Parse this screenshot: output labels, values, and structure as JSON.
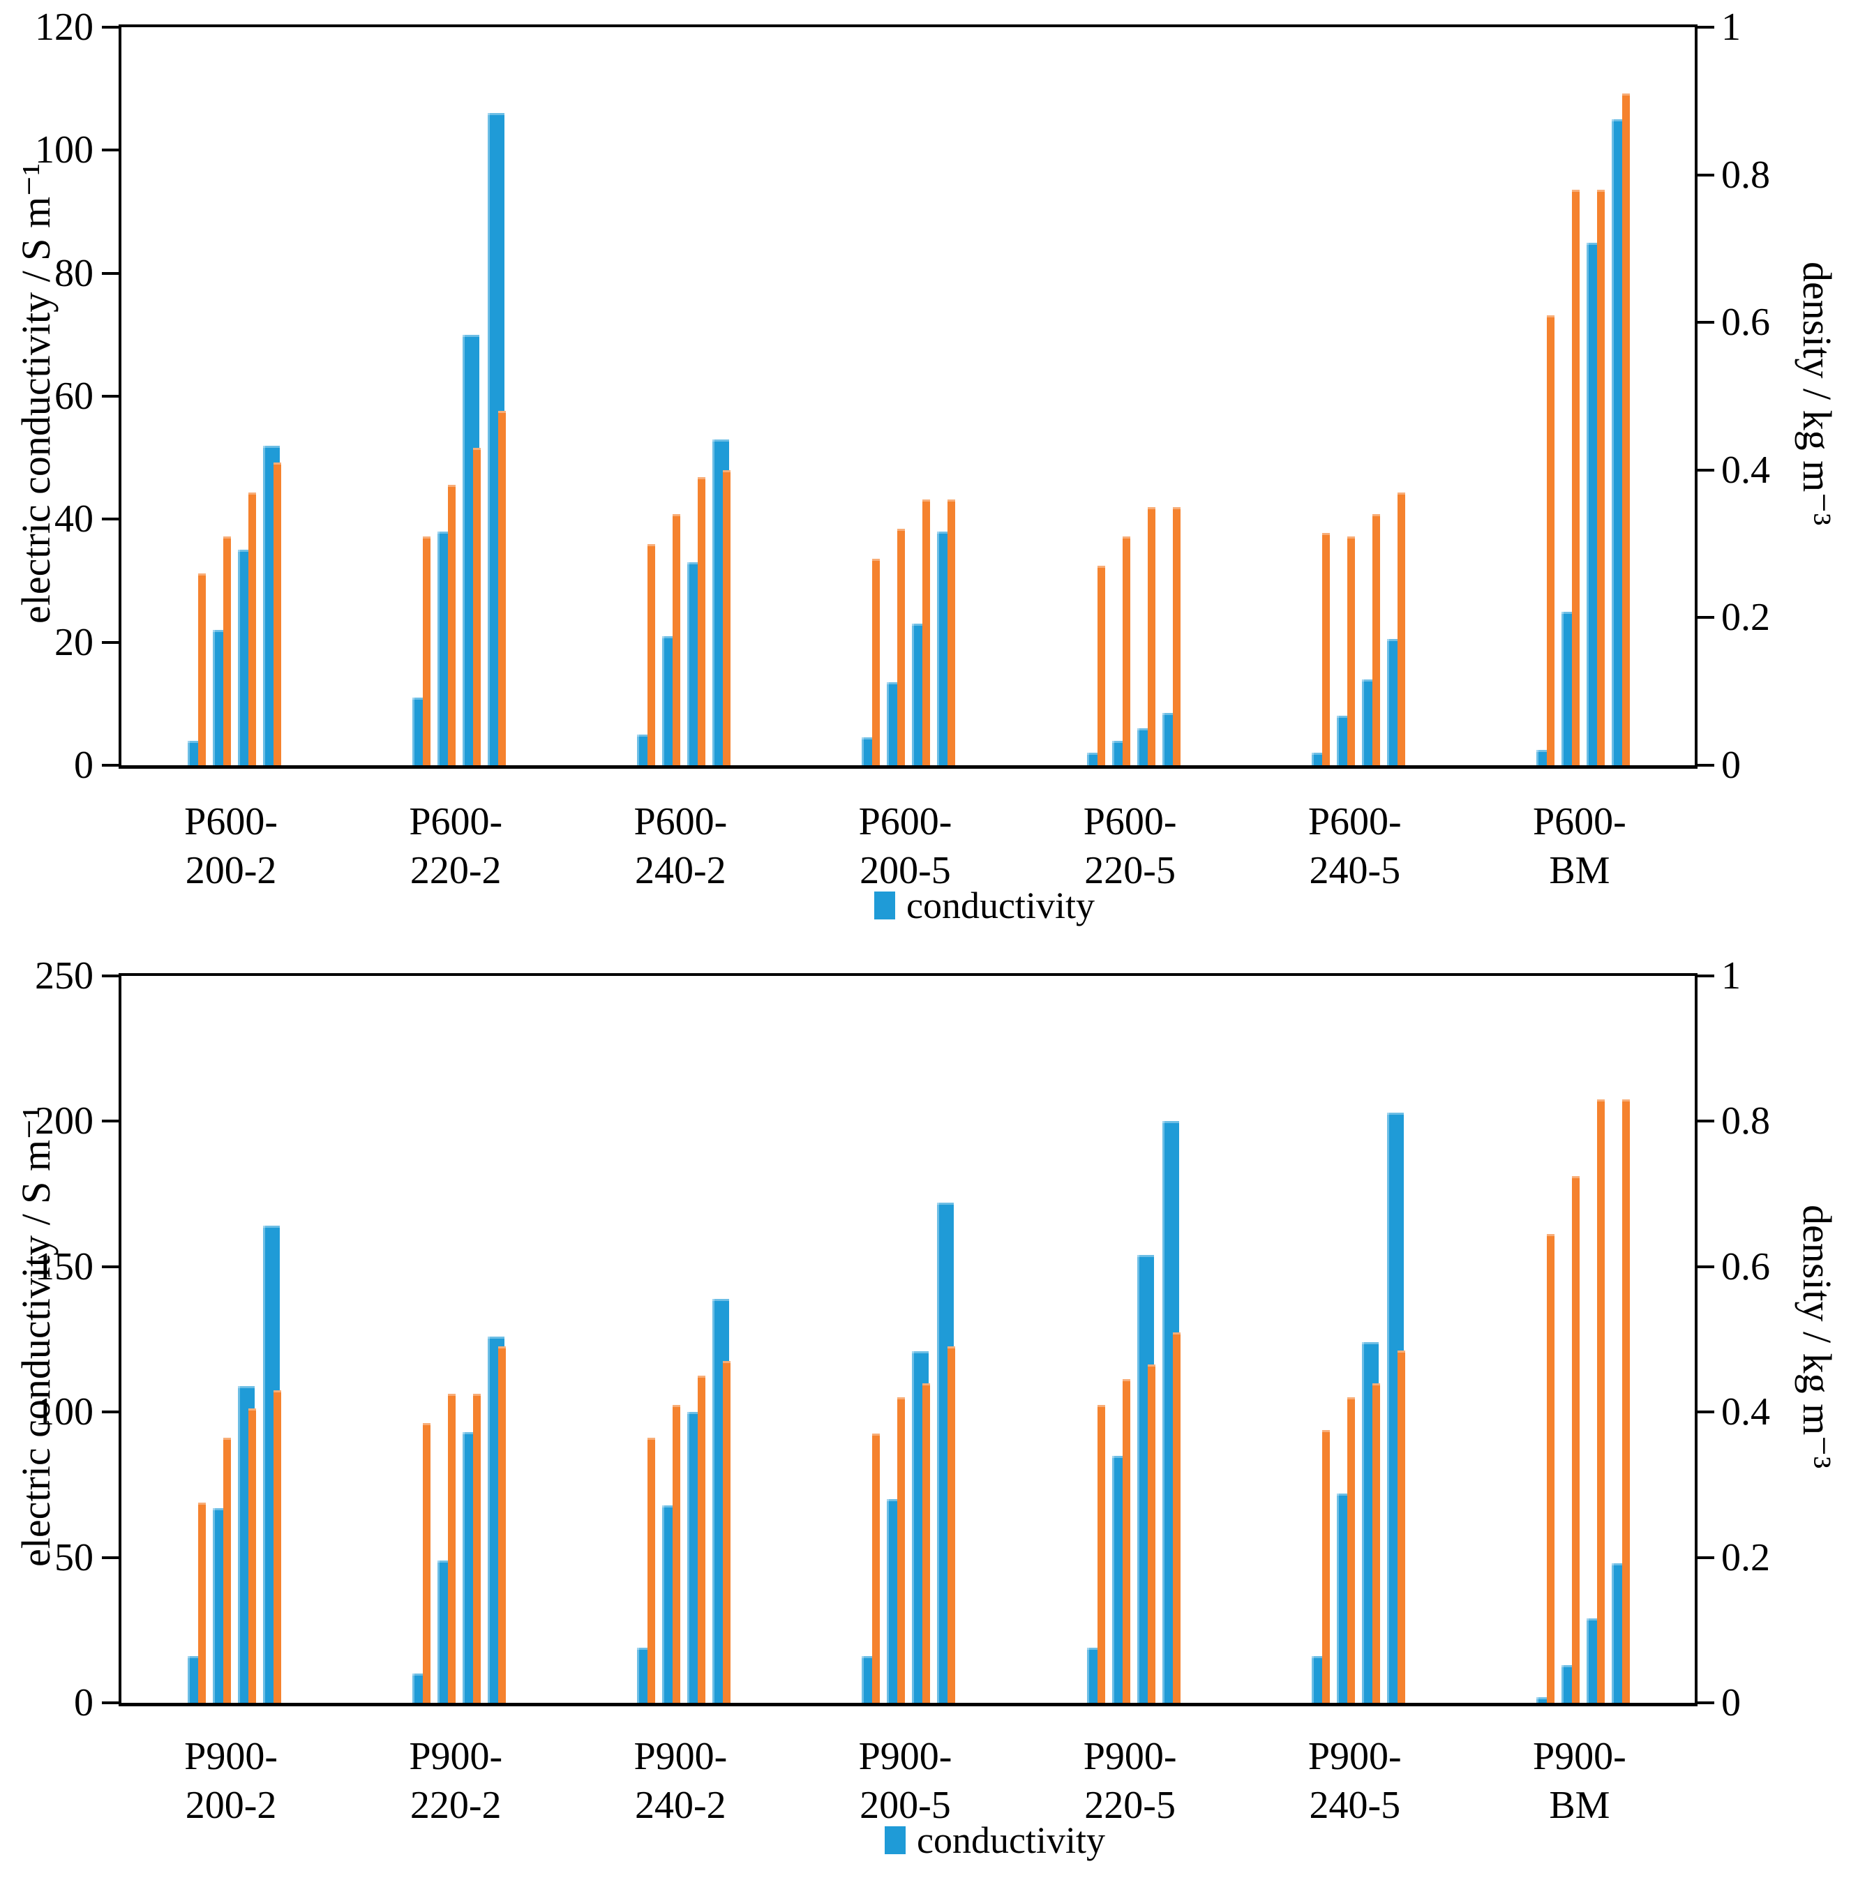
{
  "colors": {
    "conductivity_blue": "#1F9BD7",
    "density_orange": "#F5822E",
    "axis_black": "#000000"
  },
  "chart_data": [
    {
      "type": "bar",
      "title": "",
      "left_axis": {
        "label": "electric conductivity / S m⁻¹",
        "ticks": [
          120,
          100,
          80,
          60,
          40,
          20,
          0
        ],
        "max": 120
      },
      "right_axis": {
        "label": "density / kg m⁻³",
        "ticks": [
          "1",
          "0.8",
          "0.6",
          "0.4",
          "0.2",
          "0"
        ],
        "max": 1
      },
      "legend": "conductivity",
      "series_names": [
        "conductivity",
        "density"
      ],
      "grid": false,
      "groups": [
        {
          "label_line1": "P600-",
          "label_line2": "200-2",
          "conductivity_S_per_m": [
            4,
            22,
            35,
            52
          ],
          "density_kg_per_m3": [
            0.26,
            0.31,
            0.37,
            0.41
          ]
        },
        {
          "label_line1": "P600-",
          "label_line2": "220-2",
          "conductivity_S_per_m": [
            11,
            38,
            70,
            106
          ],
          "density_kg_per_m3": [
            0.31,
            0.38,
            0.43,
            0.48
          ]
        },
        {
          "label_line1": "P600-",
          "label_line2": "240-2",
          "conductivity_S_per_m": [
            5,
            21,
            33,
            53
          ],
          "density_kg_per_m3": [
            0.3,
            0.34,
            0.39,
            0.4
          ]
        },
        {
          "label_line1": "P600-",
          "label_line2": "200-5",
          "conductivity_S_per_m": [
            4.5,
            13.5,
            23,
            38
          ],
          "density_kg_per_m3": [
            0.28,
            0.32,
            0.36,
            0.36
          ]
        },
        {
          "label_line1": "P600-",
          "label_line2": "220-5",
          "conductivity_S_per_m": [
            2,
            4,
            6,
            8.5
          ],
          "density_kg_per_m3": [
            0.27,
            0.31,
            0.35,
            0.35
          ]
        },
        {
          "label_line1": "P600-",
          "label_line2": "240-5",
          "conductivity_S_per_m": [
            2,
            8,
            14,
            20.5
          ],
          "density_kg_per_m3": [
            0.315,
            0.31,
            0.34,
            0.37
          ]
        },
        {
          "label_line1": "P600-",
          "label_line2": "BM",
          "conductivity_S_per_m": [
            2.5,
            25,
            85,
            105
          ],
          "density_kg_per_m3": [
            0.61,
            0.78,
            0.78,
            0.91
          ]
        }
      ]
    },
    {
      "type": "bar",
      "title": "",
      "left_axis": {
        "label": "electric conductivity / S m⁻¹",
        "ticks": [
          250,
          200,
          150,
          100,
          50,
          0
        ],
        "max": 250
      },
      "right_axis": {
        "label": "density / kg m⁻³",
        "ticks": [
          "1",
          "0.8",
          "0.6",
          "0.4",
          "0.2",
          "0"
        ],
        "max": 1
      },
      "legend": "conductivity",
      "series_names": [
        "conductivity",
        "density"
      ],
      "grid": false,
      "groups": [
        {
          "label_line1": "P900-",
          "label_line2": "200-2",
          "conductivity_S_per_m": [
            16,
            67,
            109,
            164
          ],
          "density_kg_per_m3": [
            0.275,
            0.365,
            0.405,
            0.43
          ]
        },
        {
          "label_line1": "P900-",
          "label_line2": "220-2",
          "conductivity_S_per_m": [
            10,
            49,
            93,
            126
          ],
          "density_kg_per_m3": [
            0.385,
            0.425,
            0.425,
            0.49
          ]
        },
        {
          "label_line1": "P900-",
          "label_line2": "240-2",
          "conductivity_S_per_m": [
            19,
            68,
            100,
            139
          ],
          "density_kg_per_m3": [
            0.365,
            0.41,
            0.45,
            0.47
          ]
        },
        {
          "label_line1": "P900-",
          "label_line2": "200-5",
          "conductivity_S_per_m": [
            16,
            70,
            121,
            172
          ],
          "density_kg_per_m3": [
            0.37,
            0.42,
            0.44,
            0.49
          ]
        },
        {
          "label_line1": "P900-",
          "label_line2": "220-5",
          "conductivity_S_per_m": [
            19,
            85,
            154,
            200
          ],
          "density_kg_per_m3": [
            0.41,
            0.445,
            0.465,
            0.51
          ]
        },
        {
          "label_line1": "P900-",
          "label_line2": "240-5",
          "conductivity_S_per_m": [
            16,
            72,
            124,
            203
          ],
          "density_kg_per_m3": [
            0.375,
            0.42,
            0.44,
            0.485
          ]
        },
        {
          "label_line1": "P900-",
          "label_line2": "BM",
          "conductivity_S_per_m": [
            2,
            13,
            29,
            48
          ],
          "density_kg_per_m3": [
            0.645,
            0.725,
            0.83,
            0.83
          ]
        }
      ]
    }
  ]
}
